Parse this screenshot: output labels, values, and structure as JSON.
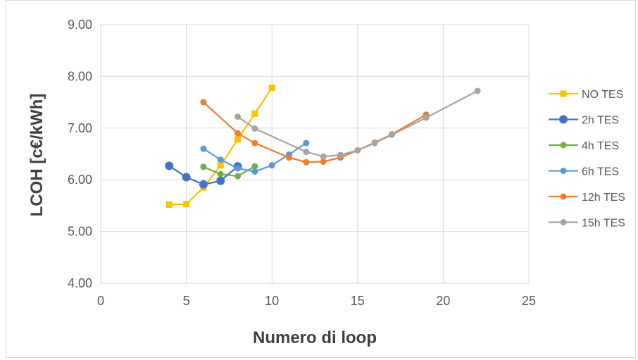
{
  "chart_data": {
    "type": "line",
    "xlabel": "Numero di loop",
    "ylabel": "LCOH [c€/kWh]",
    "xlim": [
      0,
      25
    ],
    "ylim": [
      4.0,
      9.0
    ],
    "x_ticks": [
      "0",
      "5",
      "10",
      "15",
      "20",
      "25"
    ],
    "y_ticks": [
      "4.00",
      "5.00",
      "6.00",
      "7.00",
      "8.00",
      "9.00"
    ],
    "grid": true,
    "legend_position": "right",
    "series": [
      {
        "name": "NO TES",
        "color": "#FFC000",
        "marker": "square",
        "x": [
          4,
          5,
          6,
          7,
          8,
          9,
          10
        ],
        "y": [
          5.52,
          5.53,
          5.85,
          6.28,
          6.78,
          7.28,
          7.78
        ]
      },
      {
        "name": "2h TES",
        "color": "#4472C4",
        "marker": "circle-large",
        "x": [
          4,
          5,
          6,
          7,
          8
        ],
        "y": [
          6.27,
          6.05,
          5.91,
          5.98,
          6.26
        ]
      },
      {
        "name": "4h TES",
        "color": "#70AD47",
        "marker": "circle",
        "x": [
          6,
          7,
          8,
          9
        ],
        "y": [
          6.25,
          6.11,
          6.07,
          6.26
        ]
      },
      {
        "name": "6h TES",
        "color": "#5B9BD5",
        "marker": "circle",
        "x": [
          6,
          7,
          8,
          9,
          10,
          11,
          12
        ],
        "y": [
          6.6,
          6.39,
          6.22,
          6.16,
          6.28,
          6.49,
          6.71
        ]
      },
      {
        "name": "12h TES",
        "color": "#ED7D31",
        "marker": "circle",
        "x": [
          6,
          8,
          9,
          11,
          12,
          13,
          14,
          15,
          16,
          17,
          19
        ],
        "y": [
          7.5,
          6.9,
          6.71,
          6.43,
          6.34,
          6.35,
          6.43,
          6.57,
          6.72,
          6.88,
          7.26
        ]
      },
      {
        "name": "15h TES",
        "color": "#A5A5A5",
        "marker": "circle",
        "x": [
          8,
          9,
          12,
          13,
          14,
          15,
          16,
          17,
          19,
          22
        ],
        "y": [
          7.22,
          6.99,
          6.54,
          6.45,
          6.48,
          6.57,
          6.71,
          6.87,
          7.2,
          7.72
        ]
      }
    ]
  }
}
